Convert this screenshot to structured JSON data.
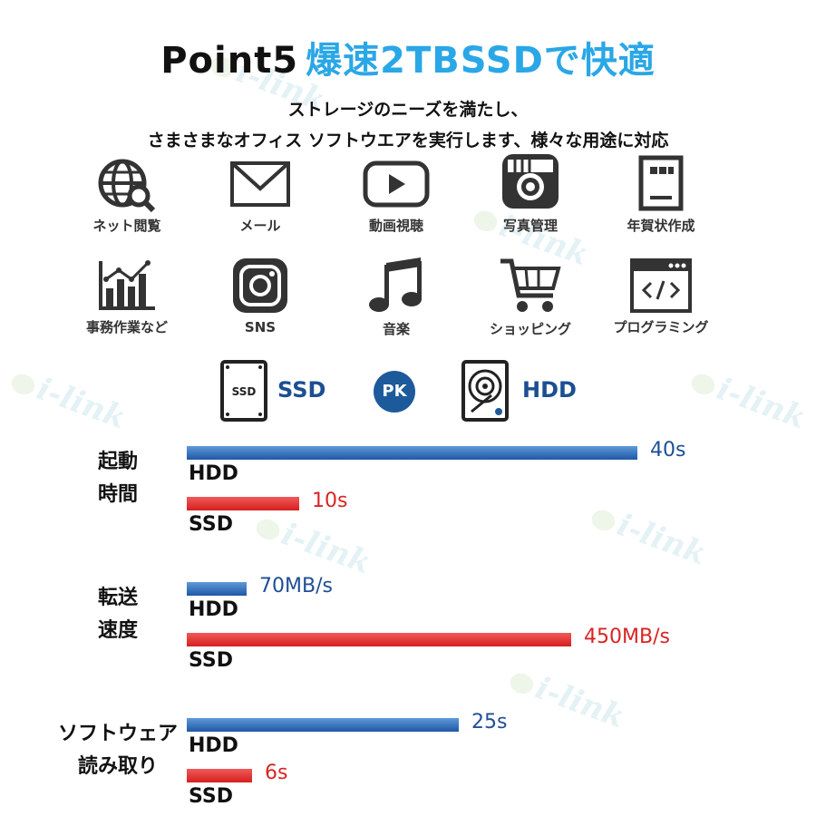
{
  "title": {
    "prefix": "Point5",
    "main": "爆速2TBSSDで快適"
  },
  "subtitle": {
    "line1": "ストレージのニーズを満たし、",
    "line2": "さまさまなオフィス ソフトウエアを実行します、様々な用途に対応"
  },
  "uses": [
    {
      "icon": "globe-search-icon",
      "label": "ネット閲覧"
    },
    {
      "icon": "mail-icon",
      "label": "メール"
    },
    {
      "icon": "video-play-icon",
      "label": "動画視聴"
    },
    {
      "icon": "camera-icon",
      "label": "写真管理"
    },
    {
      "icon": "document-icon",
      "label": "年賀状作成"
    },
    {
      "icon": "chart-icon",
      "label": "事務作業など"
    },
    {
      "icon": "instagram-icon",
      "label": "SNS"
    },
    {
      "icon": "music-note-icon",
      "label": "音楽"
    },
    {
      "icon": "shopping-cart-icon",
      "label": "ショッピング"
    },
    {
      "icon": "code-window-icon",
      "label": "プログラミング"
    }
  ],
  "comparison": {
    "left": "SSD",
    "vs": "PK",
    "right": "HDD"
  },
  "watermark": "i-link",
  "colors": {
    "hdd": "#1f58a5",
    "ssd": "#d61f1f",
    "title_accent": "#2aa7e6"
  },
  "chart_data": {
    "type": "bar",
    "orientation": "horizontal",
    "groups": [
      {
        "name": [
          "起動",
          "時間"
        ],
        "bars": [
          {
            "series": "HDD",
            "value": 40,
            "label": "40s"
          },
          {
            "series": "SSD",
            "value": 10,
            "label": "10s"
          }
        ]
      },
      {
        "name": [
          "転送",
          "速度"
        ],
        "bars": [
          {
            "series": "HDD",
            "value": 70,
            "label": "70MB/s"
          },
          {
            "series": "SSD",
            "value": 450,
            "label": "450MB/s"
          }
        ]
      },
      {
        "name": [
          "ソフトウェア",
          "読み取り"
        ],
        "bars": [
          {
            "series": "HDD",
            "value": 25,
            "label": "25s"
          },
          {
            "series": "SSD",
            "value": 6,
            "label": "6s"
          }
        ]
      }
    ]
  }
}
